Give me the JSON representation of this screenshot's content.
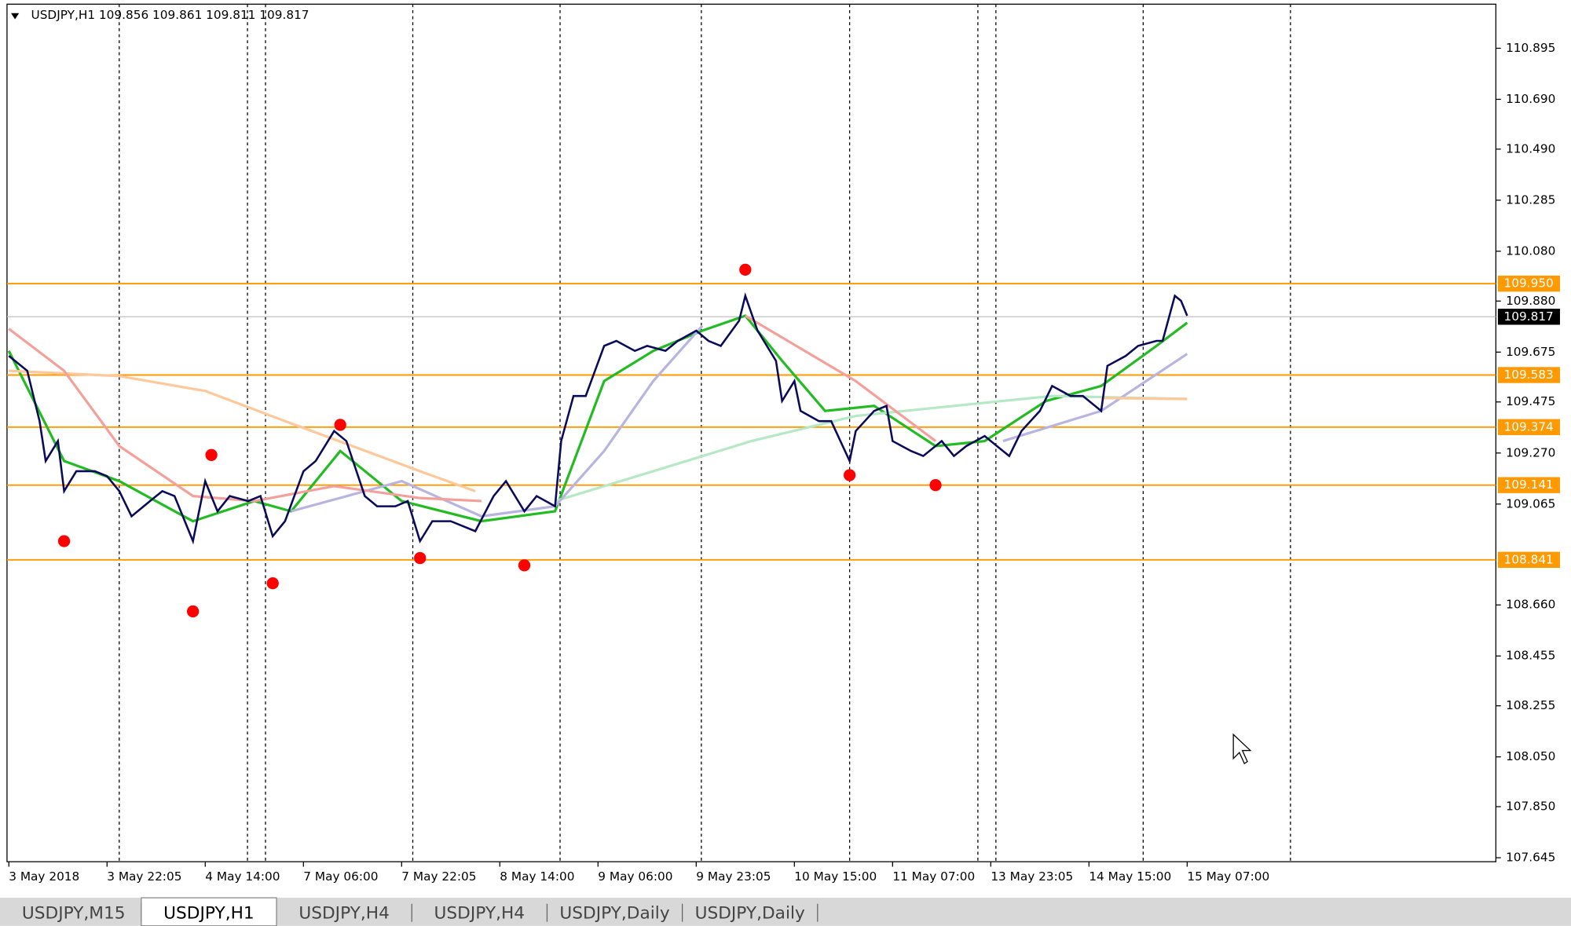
{
  "chart_data": {
    "type": "line",
    "title": "USDJPY,H1  109.856 109.861 109.811 109.817",
    "xlim": [
      -0.3,
      242.3
    ],
    "ylim": [
      107.629,
      111.072
    ],
    "yticks": [
      {
        "value": 110.895,
        "label": "110.895"
      },
      {
        "value": 110.69,
        "label": "110.690"
      },
      {
        "value": 110.49,
        "label": "110.490"
      },
      {
        "value": 110.285,
        "label": "110.285"
      },
      {
        "value": 110.08,
        "label": "110.080"
      },
      {
        "value": 109.88,
        "label": "109.880"
      },
      {
        "value": 109.675,
        "label": "109.675"
      },
      {
        "value": 109.475,
        "label": "109.475"
      },
      {
        "value": 109.27,
        "label": "109.270"
      },
      {
        "value": 109.065,
        "label": "109.065"
      },
      {
        "value": 108.66,
        "label": "108.660"
      },
      {
        "value": 108.455,
        "label": "108.455"
      },
      {
        "value": 108.255,
        "label": "108.255"
      },
      {
        "value": 108.05,
        "label": "108.050"
      },
      {
        "value": 107.85,
        "label": "107.850"
      },
      {
        "value": 107.645,
        "label": "107.645"
      }
    ],
    "xticks": [
      {
        "value": 0,
        "label": "3 May 2018"
      },
      {
        "value": 16,
        "label": "3 May 22:05"
      },
      {
        "value": 32,
        "label": "4 May 14:00"
      },
      {
        "value": 48,
        "label": "7 May 06:00"
      },
      {
        "value": 64,
        "label": "7 May 22:05"
      },
      {
        "value": 80,
        "label": "8 May 14:00"
      },
      {
        "value": 96,
        "label": "9 May 06:00"
      },
      {
        "value": 112,
        "label": "9 May 23:05"
      },
      {
        "value": 128,
        "label": "10 May 15:00"
      },
      {
        "value": 144,
        "label": "11 May 07:00"
      },
      {
        "value": 160,
        "label": "13 May 23:05"
      },
      {
        "value": 176,
        "label": "14 May 15:00"
      },
      {
        "value": 192,
        "label": "15 May 07:00"
      }
    ],
    "levels": [
      {
        "value": 109.95,
        "label": "109.950"
      },
      {
        "value": 109.583,
        "label": "109.583"
      },
      {
        "value": 109.374,
        "label": "109.374"
      },
      {
        "value": 109.141,
        "label": "109.141"
      },
      {
        "value": 108.841,
        "label": "108.841"
      }
    ],
    "level_color": "#ff9900",
    "current_price": {
      "value": 109.817,
      "label": "109.817"
    },
    "series": [
      {
        "color": "#0a0a5a",
        "x": [
          0,
          3,
          5,
          6,
          8,
          9,
          11,
          14,
          16,
          18,
          20,
          23,
          25,
          27,
          30,
          32,
          34,
          36,
          39,
          41,
          43,
          45,
          48,
          50,
          53,
          55,
          58,
          60,
          63,
          65,
          67,
          69,
          72,
          74,
          76,
          79,
          81,
          84,
          86,
          89,
          90,
          92,
          94,
          97,
          99,
          102,
          104,
          107,
          109,
          112,
          114,
          116,
          119,
          120,
          122,
          125,
          126,
          128,
          129,
          132,
          134,
          137,
          138,
          141,
          143,
          144,
          147,
          149,
          152,
          154,
          156,
          159,
          161,
          163,
          165,
          168,
          170,
          173,
          175,
          178,
          179,
          182,
          184,
          187,
          188,
          190,
          191,
          192
        ],
        "values": [
          109.66,
          109.6,
          109.398,
          109.238,
          109.318,
          109.117,
          109.197,
          109.197,
          109.177,
          109.117,
          109.016,
          109.077,
          109.117,
          109.097,
          108.916,
          109.157,
          109.036,
          109.097,
          109.077,
          109.097,
          108.936,
          108.996,
          109.197,
          109.238,
          109.358,
          109.318,
          109.097,
          109.056,
          109.056,
          109.077,
          108.916,
          108.996,
          108.996,
          108.976,
          108.956,
          109.097,
          109.157,
          109.036,
          109.097,
          109.056,
          109.318,
          109.499,
          109.499,
          109.7,
          109.72,
          109.68,
          109.7,
          109.68,
          109.72,
          109.761,
          109.72,
          109.7,
          109.801,
          109.901,
          109.761,
          109.64,
          109.479,
          109.559,
          109.439,
          109.398,
          109.398,
          109.238,
          109.358,
          109.439,
          109.459,
          109.318,
          109.278,
          109.258,
          109.318,
          109.258,
          109.298,
          109.338,
          109.298,
          109.258,
          109.358,
          109.439,
          109.539,
          109.499,
          109.499,
          109.439,
          109.62,
          109.66,
          109.7,
          109.72,
          109.72,
          109.901,
          109.881,
          109.821
        ]
      },
      {
        "color": "#f4a09a",
        "x": [
          0,
          9,
          18,
          30,
          40,
          53,
          67,
          77,
          78,
          120,
          138,
          151
        ],
        "values": [
          109.769,
          109.6,
          109.298,
          109.097,
          109.077,
          109.137,
          109.089,
          109.077,
          null,
          109.821,
          109.559,
          109.318
        ]
      },
      {
        "color": "#fdc89a",
        "x": [
          0,
          18,
          32,
          45,
          56,
          67,
          76,
          77,
          178,
          192
        ],
        "values": [
          109.6,
          109.579,
          109.519,
          109.398,
          109.298,
          109.197,
          109.117,
          null,
          109.491,
          109.487
        ]
      },
      {
        "color": "#b8b4e0",
        "x": [
          46,
          64,
          77,
          89,
          97,
          105,
          113,
          114,
          162,
          178,
          192
        ],
        "values": [
          109.036,
          109.157,
          109.016,
          109.056,
          109.278,
          109.559,
          109.781,
          null,
          109.318,
          109.439,
          109.668
        ]
      },
      {
        "color": "#b5e8c4",
        "x": [
          89,
          105,
          121,
          138,
          154,
          170,
          192
        ],
        "values": [
          109.077,
          109.197,
          109.318,
          109.419,
          109.459,
          109.499,
          109.487
        ]
      },
      {
        "color": "#22bb22",
        "x": [
          0,
          9,
          18,
          30,
          40,
          46,
          54,
          64,
          77,
          89,
          97,
          105,
          113,
          120,
          126,
          133,
          141,
          151,
          159,
          169,
          178,
          187,
          192
        ],
        "values": [
          109.68,
          109.238,
          109.157,
          108.996,
          109.077,
          109.036,
          109.278,
          109.077,
          108.996,
          109.036,
          109.559,
          109.68,
          109.761,
          109.821,
          109.64,
          109.439,
          109.459,
          109.298,
          109.318,
          109.479,
          109.539,
          109.7,
          109.793
        ]
      }
    ],
    "swing_points": {
      "color": "#ff0000",
      "x": [
        9,
        30,
        33,
        43,
        54,
        67,
        84,
        120,
        137,
        151
      ],
      "values": [
        108.916,
        108.634,
        109.262,
        108.747,
        109.383,
        108.848,
        108.819,
        110.006,
        109.181,
        109.141
      ]
    },
    "tabs": [
      "USDJPY,M15",
      "USDJPY,H1",
      "USDJPY,H4",
      "USDJPY,H4",
      "USDJPY,Daily",
      "USDJPY,Daily"
    ],
    "active_tab": 1
  }
}
